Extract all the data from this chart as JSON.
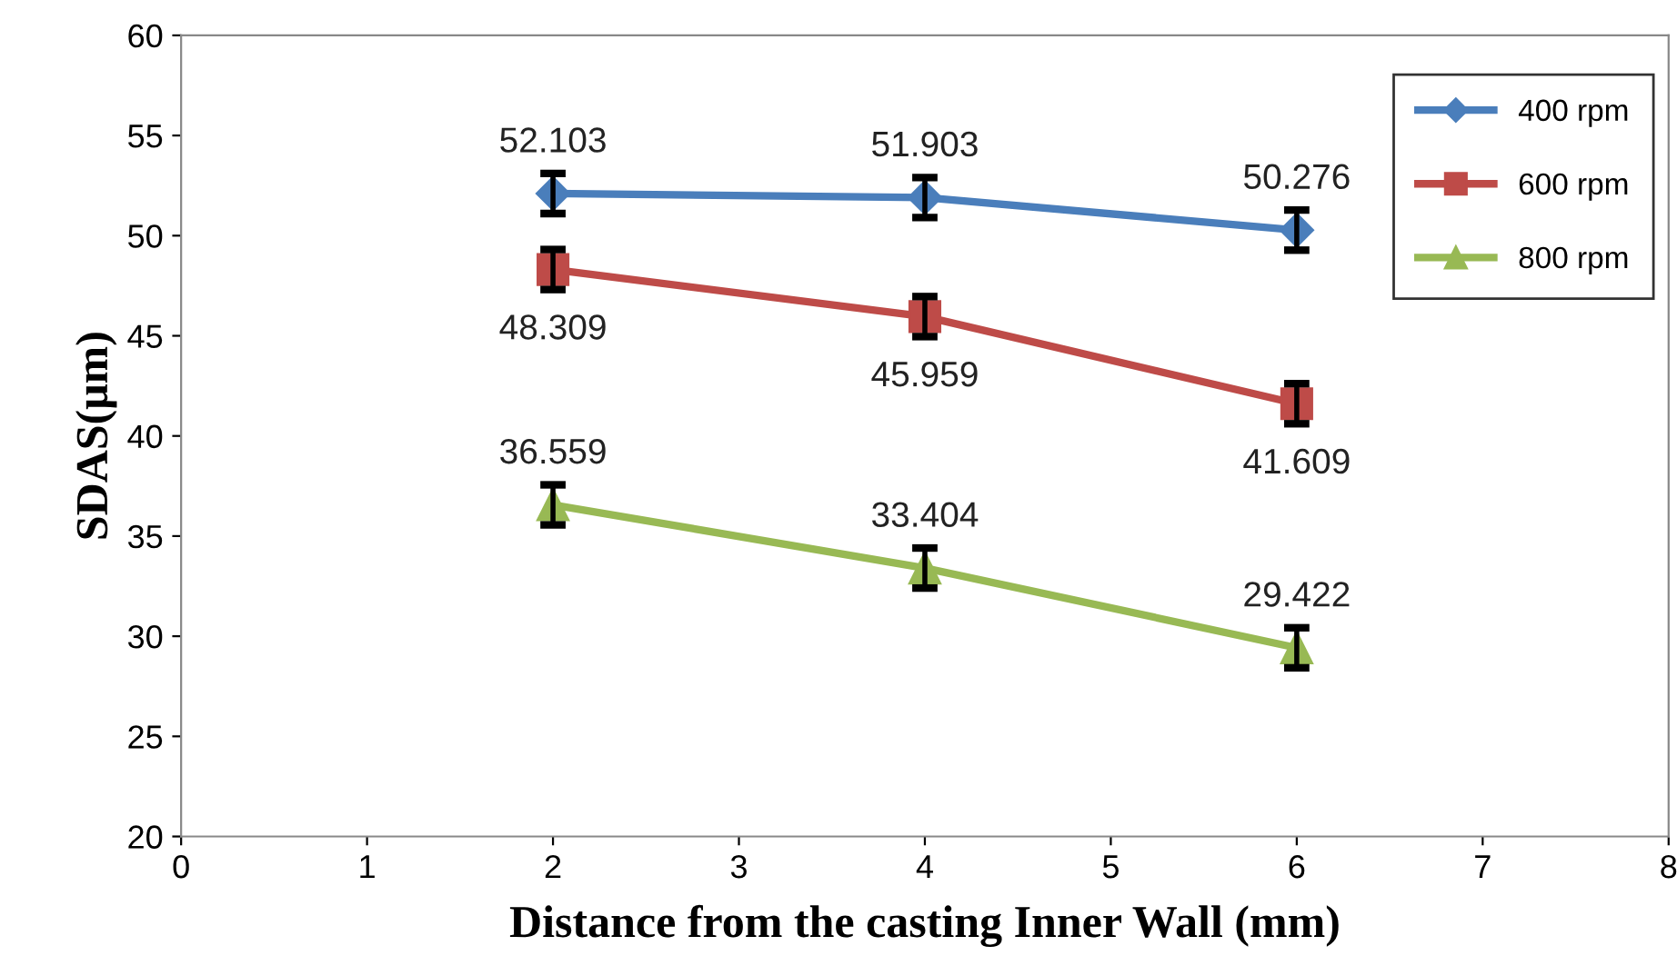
{
  "chart_data": {
    "type": "line",
    "xlabel": "Distance from the casting Inner Wall (mm)",
    "ylabel": "SDAS(μm)",
    "x": [
      2,
      4,
      6
    ],
    "xlim": [
      0,
      8
    ],
    "xticks": [
      0,
      1,
      2,
      3,
      4,
      5,
      6,
      7,
      8
    ],
    "ylim": [
      20,
      60
    ],
    "yticks": [
      20,
      25,
      30,
      35,
      40,
      45,
      50,
      55,
      60
    ],
    "grid": false,
    "legend": "top right",
    "data_labels": true,
    "line_style": "solid",
    "series": [
      {
        "name": "400 rpm",
        "color": "#4a7ebb",
        "marker": "diamond",
        "values": [
          52.103,
          51.903,
          50.276
        ],
        "errors": [
          1,
          1,
          1
        ]
      },
      {
        "name": "600 rpm",
        "color": "#be4b48",
        "marker": "square",
        "values": [
          48.309,
          45.959,
          41.609
        ],
        "errors": [
          1,
          1,
          1
        ]
      },
      {
        "name": "800 rpm",
        "color": "#98b954",
        "marker": "triangle",
        "values": [
          36.559,
          33.404,
          29.422
        ],
        "errors": [
          1,
          1,
          1
        ]
      }
    ]
  }
}
